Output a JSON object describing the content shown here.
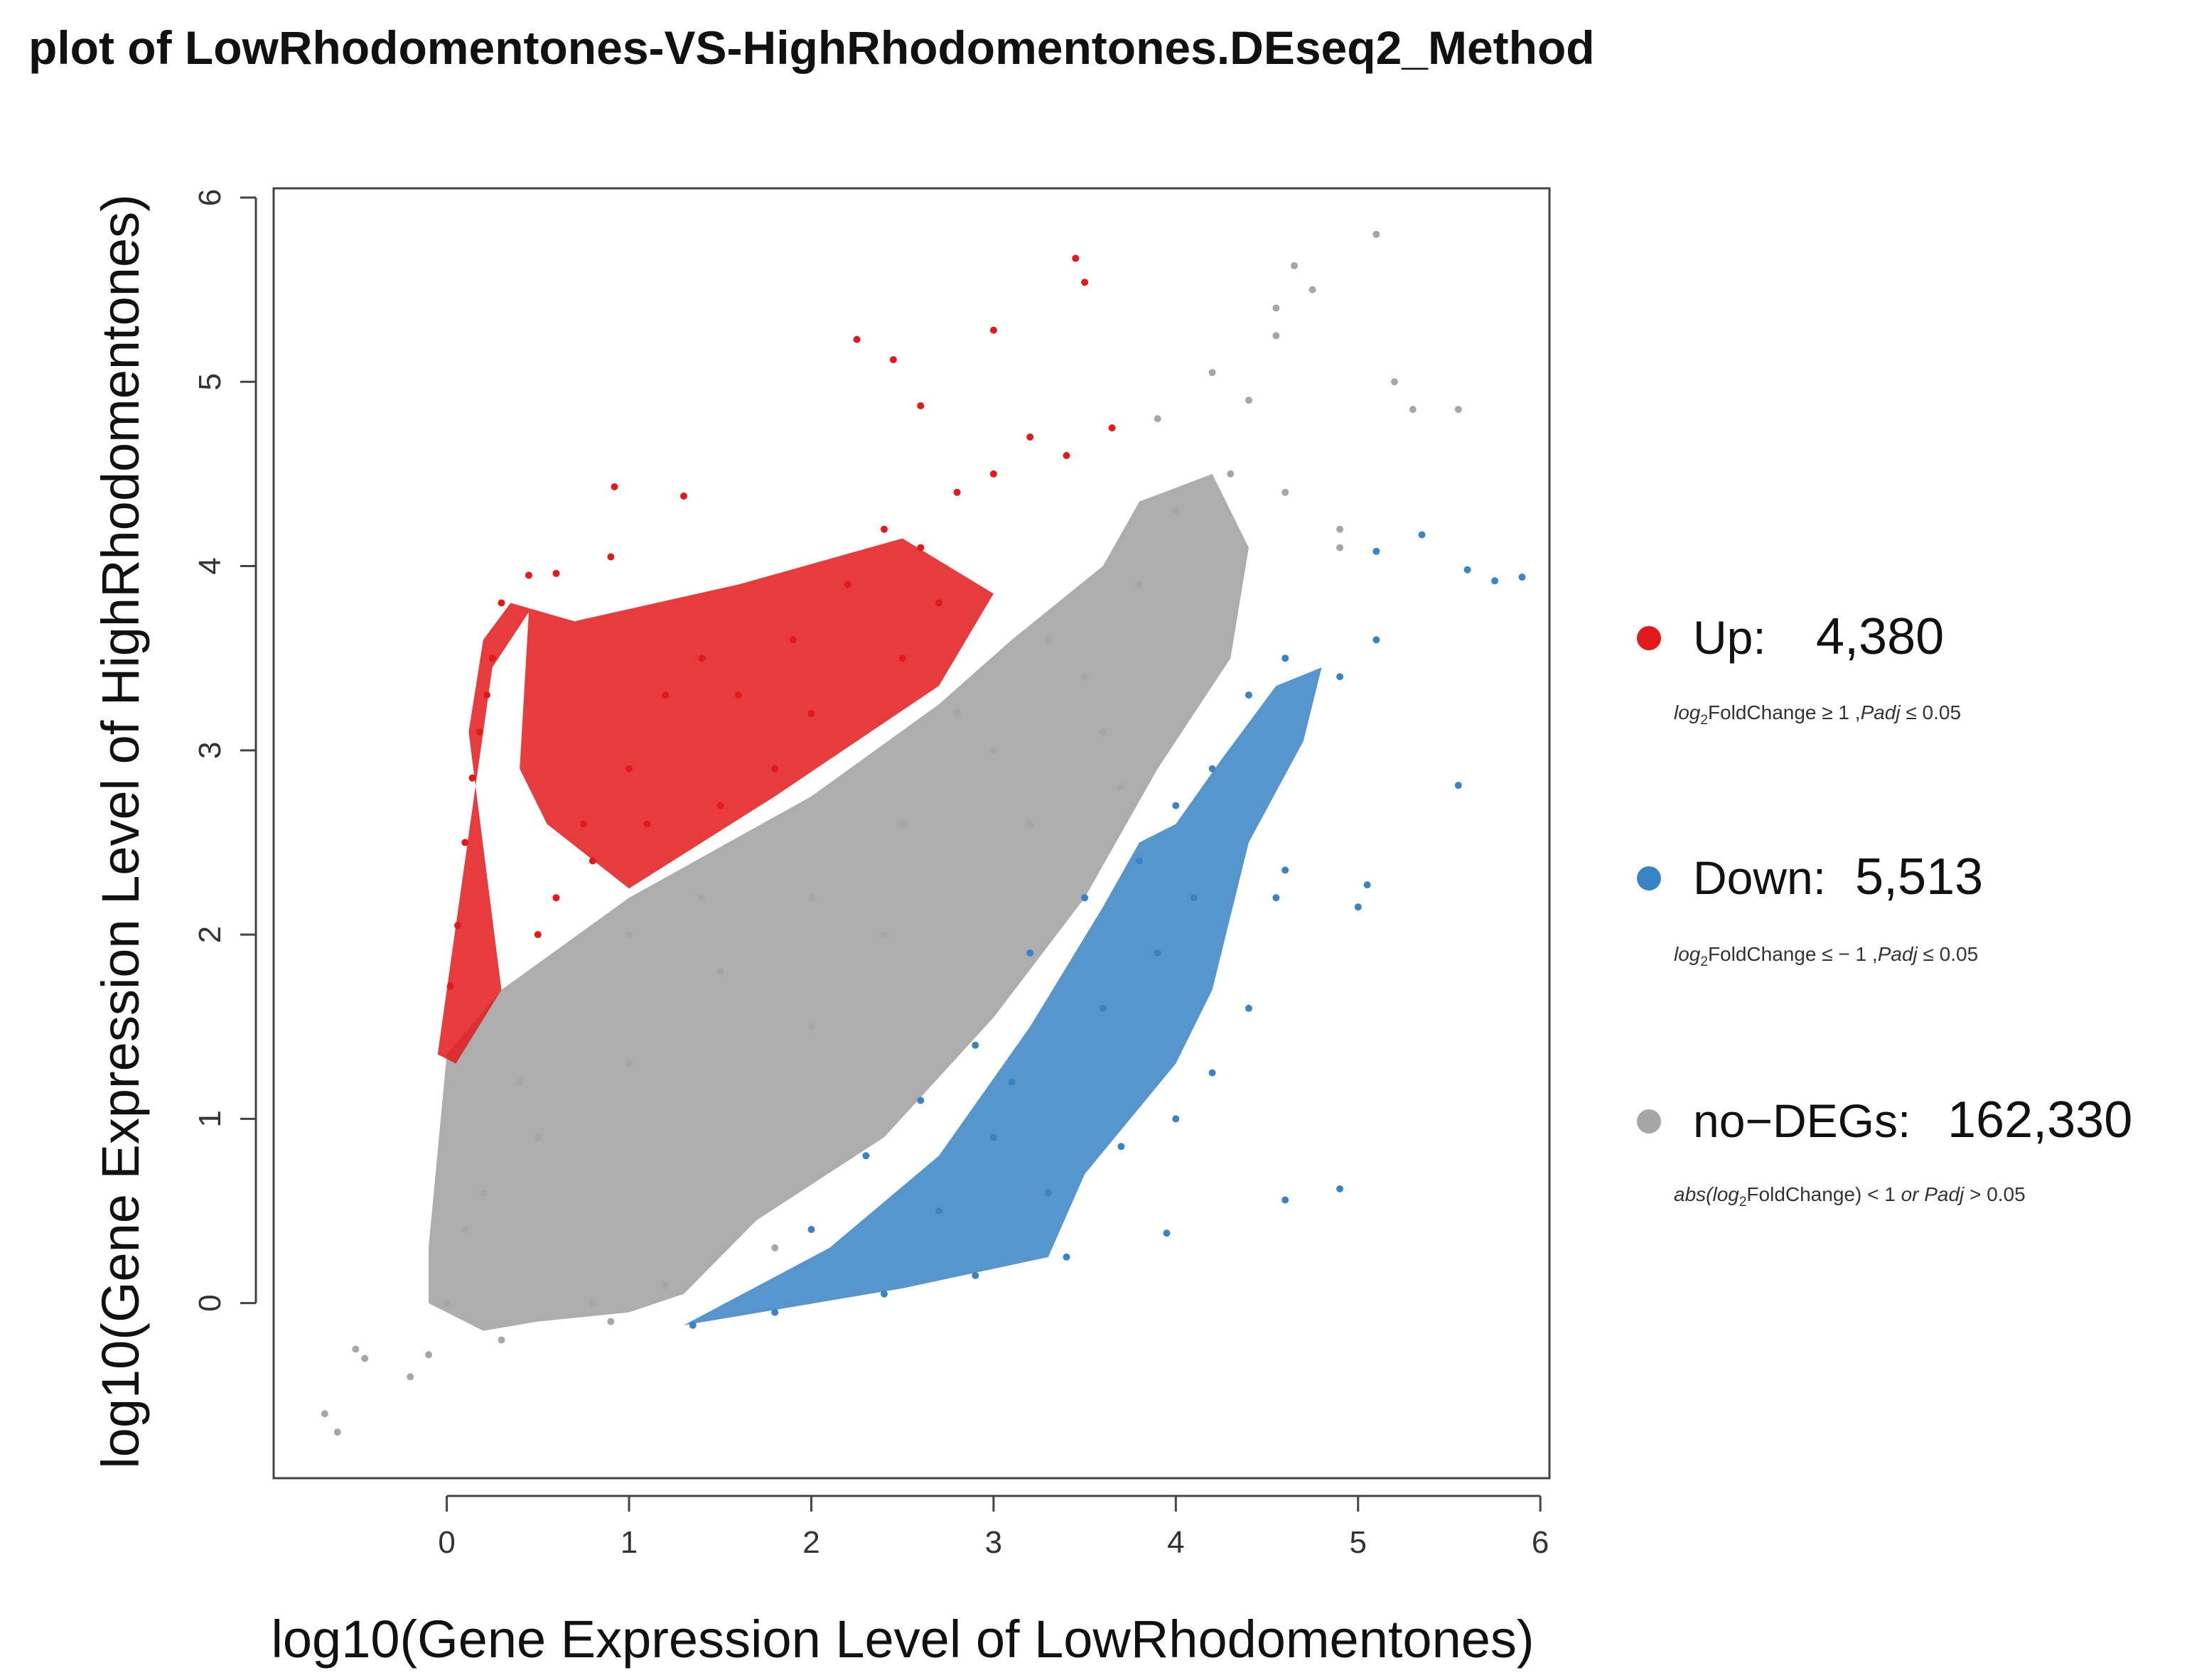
{
  "chart_data": {
    "type": "scatter",
    "title": "plot of LowRhodomentones-VS-HighRhodomentones.DEseq2_Method",
    "xlabel": "log10(Gene Expression Level of LowRhodomentones)",
    "ylabel": "log10(Gene Expression Level of HighRhodomentones)",
    "xlim": [
      -0.95,
      6.05
    ],
    "ylim": [
      -0.95,
      6.05
    ],
    "xticks": [
      0,
      1,
      2,
      3,
      4,
      5,
      6
    ],
    "yticks": [
      0,
      1,
      2,
      3,
      4,
      5,
      6
    ],
    "grid": false,
    "legend_position": "right",
    "series": [
      {
        "key": "up",
        "name": "Up:",
        "count_label": "4,380",
        "count": 4380,
        "color": "#e31a1c",
        "condition": {
          "pre": "log",
          "sub": "2",
          "mid": "FoldChange ≥ 1 ,",
          "italic": "Padj",
          "post": " ≤ 0.05"
        },
        "points": [
          [
            0.02,
            1.72
          ],
          [
            0.06,
            2.05
          ],
          [
            0.1,
            2.5
          ],
          [
            0.14,
            2.85
          ],
          [
            0.18,
            3.1
          ],
          [
            0.22,
            3.3
          ],
          [
            0.25,
            3.5
          ],
          [
            0.3,
            3.8
          ],
          [
            0.45,
            3.95
          ],
          [
            0.6,
            3.96
          ],
          [
            0.9,
            4.05
          ],
          [
            0.92,
            4.43
          ],
          [
            1.3,
            4.38
          ],
          [
            0.75,
            2.6
          ],
          [
            1.0,
            2.9
          ],
          [
            1.2,
            3.3
          ],
          [
            1.4,
            3.5
          ],
          [
            1.6,
            3.3
          ],
          [
            1.9,
            3.6
          ],
          [
            2.2,
            3.9
          ],
          [
            2.4,
            4.2
          ],
          [
            2.6,
            4.1
          ],
          [
            2.8,
            4.4
          ],
          [
            3.0,
            4.5
          ],
          [
            3.2,
            4.7
          ],
          [
            3.4,
            4.6
          ],
          [
            3.65,
            4.75
          ],
          [
            2.25,
            5.23
          ],
          [
            2.45,
            5.12
          ],
          [
            3.0,
            5.28
          ],
          [
            2.6,
            4.87
          ],
          [
            3.45,
            5.67
          ],
          [
            3.5,
            5.54
          ],
          [
            0.6,
            2.2
          ],
          [
            0.8,
            2.4
          ],
          [
            1.5,
            2.7
          ],
          [
            2.0,
            3.2
          ],
          [
            2.5,
            3.5
          ],
          [
            1.1,
            2.6
          ],
          [
            1.8,
            2.9
          ],
          [
            2.7,
            3.8
          ],
          [
            0.5,
            2.0
          ]
        ]
      },
      {
        "key": "down",
        "name": "Down:",
        "count_label": "5,513",
        "count": 5513,
        "color": "#3a84c4",
        "condition": {
          "pre": "log",
          "sub": "2",
          "mid": "FoldChange ≤ − 1 ,",
          "italic": "Padj",
          "post": " ≤ 0.05"
        },
        "points": [
          [
            1.35,
            -0.12
          ],
          [
            1.8,
            -0.05
          ],
          [
            2.4,
            0.05
          ],
          [
            2.9,
            0.15
          ],
          [
            3.4,
            0.25
          ],
          [
            2.0,
            0.4
          ],
          [
            2.3,
            0.8
          ],
          [
            2.6,
            1.1
          ],
          [
            2.9,
            1.4
          ],
          [
            3.2,
            1.9
          ],
          [
            3.5,
            2.2
          ],
          [
            3.6,
            1.6
          ],
          [
            3.8,
            2.4
          ],
          [
            4.0,
            2.7
          ],
          [
            4.2,
            2.9
          ],
          [
            4.4,
            3.3
          ],
          [
            4.6,
            3.5
          ],
          [
            4.9,
            3.4
          ],
          [
            5.1,
            3.6
          ],
          [
            5.35,
            4.17
          ],
          [
            5.1,
            4.08
          ],
          [
            5.6,
            3.98
          ],
          [
            5.75,
            3.92
          ],
          [
            5.9,
            3.94
          ],
          [
            5.55,
            2.81
          ],
          [
            4.55,
            2.2
          ],
          [
            4.6,
            2.35
          ],
          [
            5.0,
            2.15
          ],
          [
            5.05,
            2.27
          ],
          [
            4.2,
            1.25
          ],
          [
            4.4,
            1.6
          ],
          [
            4.6,
            0.56
          ],
          [
            4.9,
            0.62
          ],
          [
            3.95,
            0.38
          ],
          [
            4.0,
            1.0
          ],
          [
            3.7,
            0.85
          ],
          [
            3.3,
            0.6
          ],
          [
            3.0,
            0.9
          ],
          [
            2.7,
            0.5
          ],
          [
            3.1,
            1.2
          ],
          [
            3.9,
            1.9
          ],
          [
            4.1,
            2.2
          ]
        ]
      },
      {
        "key": "nodeg",
        "name": "no−DEGs:",
        "count_label": "162,330",
        "count": 162330,
        "color": "#a6a6a6",
        "condition": {
          "pre": "abs(log",
          "sub": "2",
          "mid": "FoldChange) < 1 ",
          "italic": " or Padj",
          "post": " > 0.05"
        },
        "points": [
          [
            -0.67,
            -0.6
          ],
          [
            -0.6,
            -0.7
          ],
          [
            -0.5,
            -0.25
          ],
          [
            -0.45,
            -0.3
          ],
          [
            -0.2,
            -0.4
          ],
          [
            -0.1,
            -0.28
          ],
          [
            0.0,
            0.0
          ],
          [
            0.1,
            0.4
          ],
          [
            0.2,
            0.6
          ],
          [
            0.5,
            0.9
          ],
          [
            1.0,
            1.3
          ],
          [
            1.5,
            1.8
          ],
          [
            2.0,
            2.2
          ],
          [
            2.5,
            2.6
          ],
          [
            3.0,
            3.0
          ],
          [
            3.5,
            3.4
          ],
          [
            3.8,
            3.9
          ],
          [
            4.0,
            4.3
          ],
          [
            4.3,
            4.5
          ],
          [
            4.6,
            4.4
          ],
          [
            4.9,
            4.1
          ],
          [
            3.9,
            4.8
          ],
          [
            4.4,
            4.9
          ],
          [
            4.2,
            5.05
          ],
          [
            4.55,
            5.25
          ],
          [
            4.55,
            5.4
          ],
          [
            4.65,
            5.63
          ],
          [
            4.75,
            5.5
          ],
          [
            5.1,
            5.8
          ],
          [
            5.2,
            5.0
          ],
          [
            5.3,
            4.85
          ],
          [
            5.55,
            4.85
          ],
          [
            4.9,
            4.2
          ],
          [
            1.8,
            0.3
          ],
          [
            1.2,
            0.1
          ],
          [
            0.8,
            0.0
          ],
          [
            2.0,
            1.5
          ],
          [
            2.4,
            2.0
          ],
          [
            3.2,
            2.6
          ],
          [
            3.6,
            3.1
          ],
          [
            1.0,
            2.0
          ],
          [
            1.4,
            2.2
          ],
          [
            2.8,
            3.2
          ],
          [
            3.3,
            3.6
          ],
          [
            0.4,
            1.2
          ],
          [
            0.3,
            -0.2
          ],
          [
            0.9,
            -0.1
          ],
          [
            3.7,
            2.8
          ]
        ]
      }
    ],
    "up_wedge": [
      [
        -0.05,
        1.35
      ],
      [
        0.25,
        3.45
      ],
      [
        0.45,
        3.75
      ],
      [
        0.4,
        2.9
      ],
      [
        0.55,
        2.6
      ],
      [
        1.0,
        2.25
      ],
      [
        1.8,
        2.75
      ],
      [
        2.7,
        3.35
      ],
      [
        3.0,
        3.85
      ],
      [
        2.5,
        4.15
      ],
      [
        1.6,
        3.9
      ],
      [
        0.7,
        3.7
      ],
      [
        0.35,
        3.8
      ],
      [
        0.2,
        3.6
      ],
      [
        0.12,
        3.1
      ],
      [
        0.3,
        1.7
      ],
      [
        0.05,
        1.3
      ]
    ],
    "down_wedge": [
      [
        1.3,
        -0.12
      ],
      [
        2.1,
        0.3
      ],
      [
        2.7,
        0.8
      ],
      [
        3.2,
        1.5
      ],
      [
        3.6,
        2.15
      ],
      [
        3.8,
        2.5
      ],
      [
        4.0,
        2.6
      ],
      [
        4.25,
        2.95
      ],
      [
        4.55,
        3.35
      ],
      [
        4.8,
        3.45
      ],
      [
        4.7,
        3.05
      ],
      [
        4.4,
        2.5
      ],
      [
        4.2,
        1.7
      ],
      [
        4.0,
        1.3
      ],
      [
        3.5,
        0.7
      ],
      [
        3.3,
        0.25
      ],
      [
        2.5,
        0.08
      ]
    ],
    "nodeg_band": [
      [
        -0.1,
        0.3
      ],
      [
        0.0,
        1.35
      ],
      [
        0.3,
        1.7
      ],
      [
        1.0,
        2.2
      ],
      [
        2.0,
        2.75
      ],
      [
        2.7,
        3.25
      ],
      [
        3.1,
        3.6
      ],
      [
        3.6,
        4.0
      ],
      [
        3.8,
        4.35
      ],
      [
        4.2,
        4.5
      ],
      [
        4.4,
        4.1
      ],
      [
        4.3,
        3.5
      ],
      [
        3.9,
        2.9
      ],
      [
        3.5,
        2.2
      ],
      [
        3.0,
        1.55
      ],
      [
        2.4,
        0.9
      ],
      [
        1.7,
        0.45
      ],
      [
        1.3,
        0.05
      ],
      [
        1.0,
        -0.05
      ],
      [
        0.5,
        -0.1
      ],
      [
        0.2,
        -0.15
      ],
      [
        -0.1,
        0.0
      ]
    ]
  }
}
